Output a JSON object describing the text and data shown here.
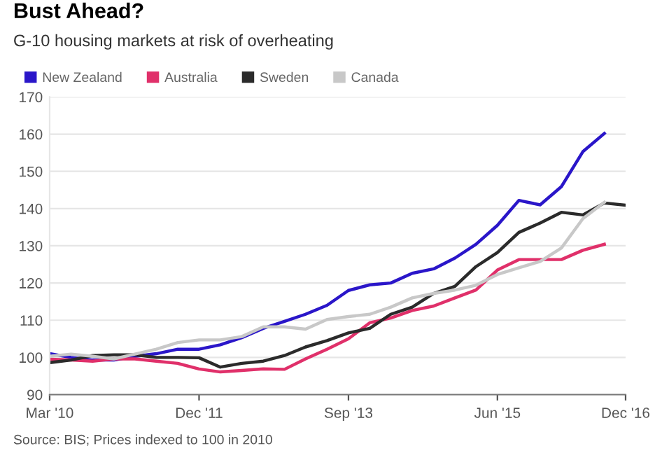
{
  "chart_data": {
    "type": "line",
    "title": "Bust Ahead?",
    "subtitle": "G-10 housing markets at risk of overheating",
    "x": [
      "2010-03",
      "2010-06",
      "2010-09",
      "2010-12",
      "2011-03",
      "2011-06",
      "2011-09",
      "2011-12",
      "2012-03",
      "2012-06",
      "2012-09",
      "2012-12",
      "2013-03",
      "2013-06",
      "2013-09",
      "2013-12",
      "2014-03",
      "2014-06",
      "2014-09",
      "2014-12",
      "2015-03",
      "2015-06",
      "2015-09",
      "2015-12",
      "2016-03",
      "2016-06",
      "2016-09",
      "2016-12"
    ],
    "series": [
      {
        "name": "New Zealand",
        "color": "#2a16c9",
        "values": [
          101,
          100,
          99.3,
          99.3,
          100.3,
          101,
          102.2,
          102.2,
          103.4,
          105.3,
          107.8,
          109.7,
          111.6,
          114,
          118,
          119.5,
          120,
          122.6,
          123.8,
          126.7,
          130.4,
          135.5,
          142.2,
          141,
          145.9,
          155.3,
          160.2,
          null
        ]
      },
      {
        "name": "Australia",
        "color": "#e0306a",
        "values": [
          99.5,
          99.3,
          99,
          99.6,
          99.6,
          99,
          98.4,
          96.9,
          96.1,
          96.5,
          96.9,
          96.8,
          99.6,
          102.2,
          105,
          109.3,
          110.6,
          112.6,
          113.8,
          116,
          118.1,
          123.5,
          126.3,
          126.3,
          126.3,
          128.8,
          130.4,
          null
        ]
      },
      {
        "name": "Sweden",
        "color": "#2b2b2b",
        "values": [
          98.6,
          99.3,
          100.5,
          100.7,
          100.7,
          100,
          100,
          99.9,
          97.4,
          98.4,
          99,
          100.5,
          102.8,
          104.5,
          106.6,
          107.8,
          111.6,
          113.5,
          117.2,
          119.1,
          124.4,
          128.2,
          133.6,
          136.1,
          139,
          138.3,
          141.5,
          140.9
        ]
      },
      {
        "name": "Canada",
        "color": "#c8c8c8",
        "values": [
          100.3,
          100.9,
          100.3,
          99.6,
          100.9,
          102.2,
          104,
          104.7,
          104.7,
          105.6,
          108.2,
          108.2,
          107.6,
          110.2,
          111,
          111.6,
          113.5,
          116,
          117.2,
          118.1,
          119.4,
          122.3,
          124.1,
          125.8,
          129.4,
          137.3,
          141.7,
          null
        ]
      }
    ],
    "xlim": [
      "2010-03",
      "2016-12"
    ],
    "xticks": [
      {
        "value": "2010-03",
        "label": "Mar '10"
      },
      {
        "value": "2011-12",
        "label": "Dec '11"
      },
      {
        "value": "2013-09",
        "label": "Sep '13"
      },
      {
        "value": "2015-06",
        "label": "Jun '15"
      },
      {
        "value": "2016-12",
        "label": "Dec '16"
      }
    ],
    "ylim": [
      90,
      170
    ],
    "yticks": [
      90,
      100,
      110,
      120,
      130,
      140,
      150,
      160,
      170
    ],
    "grid": "y",
    "legend": "top left",
    "line_style": "solid",
    "marker": "none",
    "annotations": [
      "Source: BIS; Prices indexed to 100 in 2010"
    ]
  }
}
